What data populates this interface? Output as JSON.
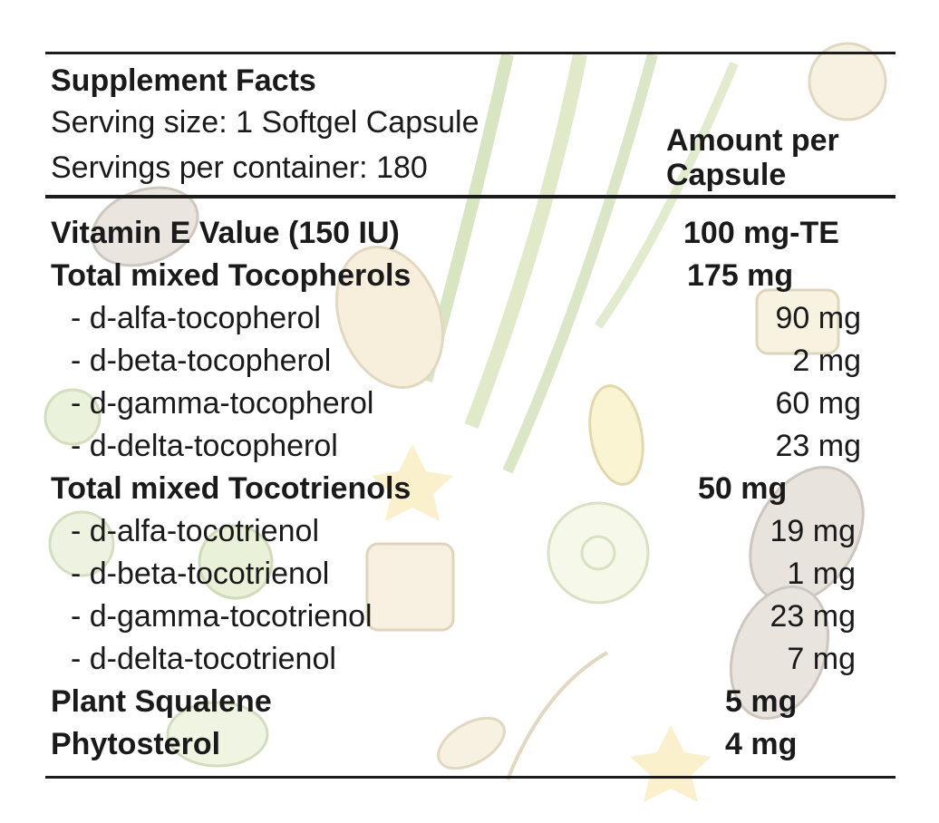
{
  "header": {
    "title": "Supplement Facts",
    "serving_size": "Serving size: 1 Softgel Capsule",
    "servings_per_container": "Servings per container: 180",
    "amount_header_line1": "Amount per",
    "amount_header_line2": "Capsule"
  },
  "rows": [
    {
      "name": "Vitamin E Value (150 IU)",
      "amount": "100 mg-TE",
      "style": "main"
    },
    {
      "name": "Total mixed Tocopherols",
      "amount": "175 mg",
      "style": "main"
    },
    {
      "name": "- d-alfa-tocopherol",
      "amount": "90 mg",
      "style": "sub"
    },
    {
      "name": "- d-beta-tocopherol",
      "amount": "2 mg",
      "style": "sub"
    },
    {
      "name": "- d-gamma-tocopherol",
      "amount": "60 mg",
      "style": "sub"
    },
    {
      "name": "- d-delta-tocopherol",
      "amount": "23 mg",
      "style": "sub"
    },
    {
      "name": "Total mixed Tocotrienols",
      "amount": "50 mg",
      "style": "main"
    },
    {
      "name": "- d-alfa-tocotrienol",
      "amount": "19 mg",
      "style": "sub"
    },
    {
      "name": "- d-beta-tocotrienol",
      "amount": "1 mg",
      "style": "sub"
    },
    {
      "name": "- d-gamma-tocotrienol",
      "amount": "23 mg",
      "style": "sub"
    },
    {
      "name": "- d-delta-tocotrienol",
      "amount": "7 mg",
      "style": "sub"
    },
    {
      "name": "Plant Squalene",
      "amount": "5 mg",
      "style": "main"
    },
    {
      "name": "Phytosterol",
      "amount": "4 mg",
      "style": "main"
    }
  ]
}
